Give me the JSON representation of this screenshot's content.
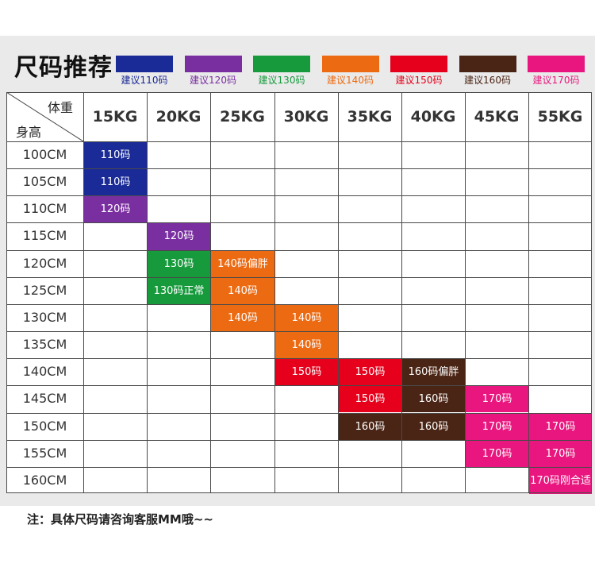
{
  "title": "尺码推荐",
  "legend": [
    {
      "label": "建议110码",
      "color": "#1a2a96"
    },
    {
      "label": "建议120码",
      "color": "#7a2fa0"
    },
    {
      "label": "建议130码",
      "color": "#169a3c"
    },
    {
      "label": "建议140码",
      "color": "#ec6a12"
    },
    {
      "label": "建议150码",
      "color": "#e6001b"
    },
    {
      "label": "建议160码",
      "color": "#4a2414"
    },
    {
      "label": "建议170码",
      "color": "#e8167e"
    }
  ],
  "table": {
    "corner_top": "体重",
    "corner_bottom": "身高",
    "columns": [
      "15KG",
      "20KG",
      "25KG",
      "30KG",
      "35KG",
      "40KG",
      "45KG",
      "55KG"
    ],
    "rows": [
      "100CM",
      "105CM",
      "110CM",
      "115CM",
      "120CM",
      "125CM",
      "130CM",
      "135CM",
      "140CM",
      "145CM",
      "150CM",
      "155CM",
      "160CM"
    ],
    "cells": [
      {
        "row": 0,
        "col": 0,
        "text": "110码",
        "color": "#1a2a96"
      },
      {
        "row": 1,
        "col": 0,
        "text": "110码",
        "color": "#1a2a96"
      },
      {
        "row": 2,
        "col": 0,
        "text": "120码",
        "color": "#7a2fa0"
      },
      {
        "row": 3,
        "col": 1,
        "text": "120码",
        "color": "#7a2fa0"
      },
      {
        "row": 4,
        "col": 1,
        "text": "130码",
        "color": "#169a3c"
      },
      {
        "row": 4,
        "col": 2,
        "text": "140码偏胖",
        "color": "#ec6a12"
      },
      {
        "row": 5,
        "col": 1,
        "text": "130码正常",
        "color": "#169a3c"
      },
      {
        "row": 5,
        "col": 2,
        "text": "140码",
        "color": "#ec6a12"
      },
      {
        "row": 6,
        "col": 2,
        "text": "140码",
        "color": "#ec6a12"
      },
      {
        "row": 6,
        "col": 3,
        "text": "140码",
        "color": "#ec6a12"
      },
      {
        "row": 7,
        "col": 3,
        "text": "140码",
        "color": "#ec6a12"
      },
      {
        "row": 8,
        "col": 3,
        "text": "150码",
        "color": "#e6001b"
      },
      {
        "row": 8,
        "col": 4,
        "text": "150码",
        "color": "#e6001b"
      },
      {
        "row": 8,
        "col": 5,
        "text": "160码偏胖",
        "color": "#4a2414"
      },
      {
        "row": 9,
        "col": 4,
        "text": "150码",
        "color": "#e6001b"
      },
      {
        "row": 9,
        "col": 5,
        "text": "160码",
        "color": "#4a2414"
      },
      {
        "row": 9,
        "col": 6,
        "text": "170码",
        "color": "#e8167e"
      },
      {
        "row": 10,
        "col": 4,
        "text": "160码",
        "color": "#4a2414"
      },
      {
        "row": 10,
        "col": 5,
        "text": "160码",
        "color": "#4a2414"
      },
      {
        "row": 10,
        "col": 6,
        "text": "170码",
        "color": "#e8167e"
      },
      {
        "row": 10,
        "col": 7,
        "text": "170码",
        "color": "#e8167e"
      },
      {
        "row": 11,
        "col": 6,
        "text": "170码",
        "color": "#e8167e"
      },
      {
        "row": 11,
        "col": 7,
        "text": "170码",
        "color": "#e8167e"
      },
      {
        "row": 12,
        "col": 7,
        "text": "170码刚合适",
        "color": "#e8167e"
      }
    ]
  },
  "note": "注：具体尺码请咨询客服MM哦~~"
}
